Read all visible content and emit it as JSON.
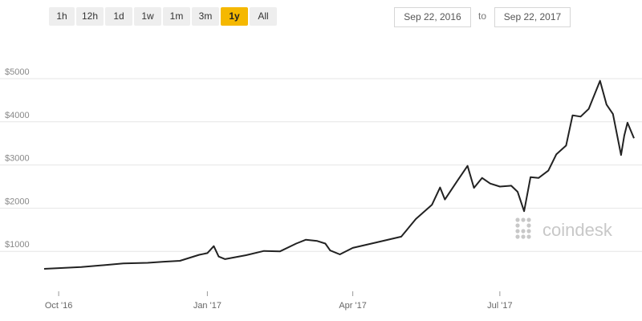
{
  "range_buttons": [
    {
      "label": "1h"
    },
    {
      "label": "12h"
    },
    {
      "label": "1d"
    },
    {
      "label": "1w"
    },
    {
      "label": "1m"
    },
    {
      "label": "3m"
    },
    {
      "label": "1y",
      "active": true
    },
    {
      "label": "All"
    }
  ],
  "date_range": {
    "start": "Sep 22, 2016",
    "separator": "to",
    "end": "Sep 22, 2017"
  },
  "watermark": "coindesk",
  "colors": {
    "accent": "#f5b800",
    "line": "#222222",
    "grid": "#e6e6e6",
    "watermark": "#c8c8c8"
  },
  "chart_data": {
    "type": "line",
    "ylim": [
      0,
      5000
    ],
    "yticks": [
      {
        "label": "$1000",
        "value": 1000
      },
      {
        "label": "$2000",
        "value": 2000
      },
      {
        "label": "$3000",
        "value": 3000
      },
      {
        "label": "$4000",
        "value": 4000
      },
      {
        "label": "$5000",
        "value": 5000
      }
    ],
    "xticks": [
      {
        "label": "Oct '16",
        "x": "2016-10-01"
      },
      {
        "label": "Jan '17",
        "x": "2017-01-01"
      },
      {
        "label": "Apr '17",
        "x": "2017-04-01"
      },
      {
        "label": "Jul '17",
        "x": "2017-07-01"
      }
    ],
    "xlim": [
      "2016-09-22",
      "2017-09-22"
    ],
    "series": [
      {
        "points": [
          [
            "2016-09-22",
            595
          ],
          [
            "2016-10-01",
            612
          ],
          [
            "2016-10-15",
            638
          ],
          [
            "2016-11-01",
            690
          ],
          [
            "2016-11-10",
            720
          ],
          [
            "2016-11-25",
            735
          ],
          [
            "2016-12-05",
            760
          ],
          [
            "2016-12-15",
            780
          ],
          [
            "2016-12-27",
            920
          ],
          [
            "2017-01-01",
            960
          ],
          [
            "2017-01-05",
            1120
          ],
          [
            "2017-01-08",
            880
          ],
          [
            "2017-01-12",
            820
          ],
          [
            "2017-01-25",
            910
          ],
          [
            "2017-02-05",
            1010
          ],
          [
            "2017-02-15",
            1000
          ],
          [
            "2017-02-25",
            1180
          ],
          [
            "2017-03-03",
            1270
          ],
          [
            "2017-03-10",
            1240
          ],
          [
            "2017-03-15",
            1180
          ],
          [
            "2017-03-18",
            1020
          ],
          [
            "2017-03-24",
            930
          ],
          [
            "2017-04-01",
            1080
          ],
          [
            "2017-04-15",
            1200
          ],
          [
            "2017-05-01",
            1340
          ],
          [
            "2017-05-10",
            1750
          ],
          [
            "2017-05-20",
            2080
          ],
          [
            "2017-05-25",
            2480
          ],
          [
            "2017-05-28",
            2200
          ],
          [
            "2017-06-05",
            2650
          ],
          [
            "2017-06-11",
            2980
          ],
          [
            "2017-06-15",
            2470
          ],
          [
            "2017-06-20",
            2700
          ],
          [
            "2017-06-25",
            2570
          ],
          [
            "2017-07-01",
            2500
          ],
          [
            "2017-07-08",
            2520
          ],
          [
            "2017-07-12",
            2380
          ],
          [
            "2017-07-16",
            1930
          ],
          [
            "2017-07-20",
            2720
          ],
          [
            "2017-07-25",
            2700
          ],
          [
            "2017-07-31",
            2870
          ],
          [
            "2017-08-05",
            3250
          ],
          [
            "2017-08-11",
            3450
          ],
          [
            "2017-08-15",
            4150
          ],
          [
            "2017-08-20",
            4120
          ],
          [
            "2017-08-25",
            4300
          ],
          [
            "2017-09-01",
            4950
          ],
          [
            "2017-09-05",
            4400
          ],
          [
            "2017-09-09",
            4180
          ],
          [
            "2017-09-14",
            3230
          ],
          [
            "2017-09-16",
            3680
          ],
          [
            "2017-09-18",
            3980
          ],
          [
            "2017-09-22",
            3620
          ]
        ]
      }
    ]
  }
}
